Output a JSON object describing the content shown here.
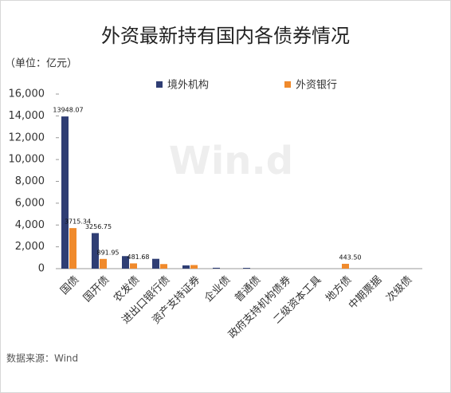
{
  "chart_data": {
    "type": "bar",
    "title": "外资最新持有国内各债券情况",
    "unit_label": "（单位：亿元）",
    "source": "数据来源：Wind",
    "watermark": "Win.d",
    "categories": [
      "国债",
      "国开债",
      "农发债",
      "进出口银行债",
      "资产支持证券",
      "企业债",
      "普通债",
      "政府支持机构债券",
      "二级资本工具",
      "地方债",
      "中期票据",
      "次级债"
    ],
    "series": [
      {
        "name": "境外机构",
        "color": "#2f3e74",
        "values": [
          13948.07,
          3256.75,
          1150,
          900,
          300,
          80,
          70,
          0,
          0,
          0,
          0,
          0
        ],
        "value_labels": [
          "13948.07",
          "3256.75",
          null,
          null,
          null,
          null,
          null,
          null,
          null,
          null,
          null,
          null
        ]
      },
      {
        "name": "外资银行",
        "color": "#f08a2c",
        "values": [
          3715.34,
          891.95,
          481.68,
          420,
          330,
          0,
          0,
          0,
          0,
          443.5,
          0,
          0
        ],
        "value_labels": [
          "3715.34",
          "891.95",
          "481.68",
          null,
          null,
          null,
          null,
          null,
          null,
          "443.50",
          null,
          null
        ]
      }
    ],
    "ylim": [
      0,
      16000
    ],
    "yticks": [
      0,
      {
        "value": 2000,
        "label": "2,000"
      },
      {
        "value": 4000,
        "label": "4,000"
      },
      {
        "value": 6000,
        "label": "6,000"
      },
      {
        "value": 8000,
        "label": "8,000"
      },
      {
        "value": 10000,
        "label": "10,000"
      },
      {
        "value": 12000,
        "label": "12,000"
      },
      {
        "value": 14000,
        "label": "14,000"
      },
      {
        "value": 16000,
        "label": "16,000"
      }
    ],
    "legend": "top"
  }
}
